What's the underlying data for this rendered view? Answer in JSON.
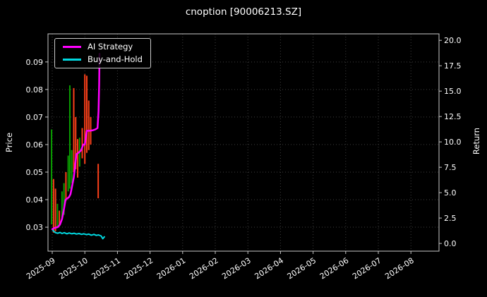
{
  "title": "cnoption [90006213.SZ]",
  "legend": [
    {
      "label": "AI Strategy",
      "color": "#ff00ff"
    },
    {
      "label": "Buy-and-Hold",
      "color": "#00d8e0"
    }
  ],
  "chart_data": {
    "type": "line",
    "title": "cnoption [90006213.SZ]",
    "xlabel": "",
    "left_ylabel": "Price",
    "right_ylabel": "Return",
    "grid": true,
    "legend_position": "upper left",
    "background": "#000000",
    "colors": {
      "grid": "#3f3f3f",
      "spine": "#c9c9c9",
      "text": "#ffffff",
      "up": "#0a9e01",
      "down": "#fb4019"
    },
    "x_tick_labels": [
      "2025-09",
      "2025-10",
      "2025-11",
      "2025-12",
      "2026-01",
      "2026-02",
      "2026-03",
      "2026-04",
      "2026-05",
      "2026-06",
      "2026-07",
      "2026-08"
    ],
    "left_yticks": [
      0.03,
      0.04,
      0.05,
      0.06,
      0.07,
      0.08,
      0.09
    ],
    "right_yticks": [
      0.0,
      2.5,
      5.0,
      7.5,
      10.0,
      12.5,
      15.0,
      17.5,
      20.0
    ],
    "left_ylim": [
      0.0213,
      0.1002
    ],
    "right_ylim": [
      -0.76,
      20.64
    ],
    "x_unit": "months after 2025-09 tick",
    "series": [
      {
        "name": "AI Strategy",
        "axis": "left",
        "color": "#ff00ff",
        "width": 2.5,
        "points": [
          [
            0,
            0.0293
          ],
          [
            0.08,
            0.0298
          ],
          [
            0.17,
            0.03
          ],
          [
            0.24,
            0.031
          ],
          [
            0.3,
            0.033
          ],
          [
            0.35,
            0.036
          ],
          [
            0.41,
            0.04
          ],
          [
            0.47,
            0.0405
          ],
          [
            0.52,
            0.041
          ],
          [
            0.56,
            0.042
          ],
          [
            0.61,
            0.045
          ],
          [
            0.66,
            0.048
          ],
          [
            0.7,
            0.052
          ],
          [
            0.74,
            0.0565
          ],
          [
            0.8,
            0.057
          ],
          [
            0.85,
            0.0575
          ],
          [
            0.89,
            0.058
          ],
          [
            0.95,
            0.06
          ],
          [
            1.0,
            0.06
          ],
          [
            1.06,
            0.065
          ],
          [
            1.15,
            0.065
          ],
          [
            1.25,
            0.0652
          ],
          [
            1.32,
            0.0655
          ],
          [
            1.39,
            0.066
          ],
          [
            1.42,
            0.072
          ],
          [
            1.44,
            0.082
          ],
          [
            1.45,
            0.093
          ]
        ]
      },
      {
        "name": "Buy-and-Hold",
        "axis": "left",
        "color": "#00d8e0",
        "width": 2,
        "points": [
          [
            0,
            0.0292
          ],
          [
            0.05,
            0.0285
          ],
          [
            0.1,
            0.028
          ],
          [
            0.17,
            0.0278
          ],
          [
            0.24,
            0.0281
          ],
          [
            0.3,
            0.0277
          ],
          [
            0.37,
            0.028
          ],
          [
            0.45,
            0.0276
          ],
          [
            0.52,
            0.0279
          ],
          [
            0.6,
            0.0276
          ],
          [
            0.67,
            0.0278
          ],
          [
            0.74,
            0.0275
          ],
          [
            0.82,
            0.0277
          ],
          [
            0.9,
            0.0274
          ],
          [
            0.97,
            0.0276
          ],
          [
            1.05,
            0.0273
          ],
          [
            1.12,
            0.0275
          ],
          [
            1.2,
            0.0271
          ],
          [
            1.28,
            0.0274
          ],
          [
            1.35,
            0.027
          ],
          [
            1.42,
            0.0272
          ],
          [
            1.5,
            0.0268
          ],
          [
            1.55,
            0.0258
          ],
          [
            1.6,
            0.0265
          ]
        ]
      }
    ],
    "candles": [
      {
        "x": -0.02,
        "low": 0.031,
        "high": 0.0655,
        "color": "#0a9e01"
      },
      {
        "x": 0.04,
        "low": 0.028,
        "high": 0.0475,
        "color": "#fb4019"
      },
      {
        "x": 0.1,
        "low": 0.0285,
        "high": 0.044,
        "color": "#fb4019"
      },
      {
        "x": 0.16,
        "low": 0.03,
        "high": 0.0385,
        "color": "#0a9e01"
      },
      {
        "x": 0.22,
        "low": 0.0305,
        "high": 0.036,
        "color": "#fb4019"
      },
      {
        "x": 0.3,
        "low": 0.033,
        "high": 0.043,
        "color": "#0a9e01"
      },
      {
        "x": 0.36,
        "low": 0.0345,
        "high": 0.046,
        "color": "#0a9e01"
      },
      {
        "x": 0.42,
        "low": 0.0395,
        "high": 0.05,
        "color": "#fb4019"
      },
      {
        "x": 0.49,
        "low": 0.043,
        "high": 0.056,
        "color": "#0a9e01"
      },
      {
        "x": 0.54,
        "low": 0.044,
        "high": 0.0815,
        "color": "#0a9e01"
      },
      {
        "x": 0.6,
        "low": 0.046,
        "high": 0.058,
        "color": "#0a9e01"
      },
      {
        "x": 0.66,
        "low": 0.05,
        "high": 0.0805,
        "color": "#fb4019"
      },
      {
        "x": 0.72,
        "low": 0.051,
        "high": 0.07,
        "color": "#fb4019"
      },
      {
        "x": 0.78,
        "low": 0.048,
        "high": 0.062,
        "color": "#fb4019"
      },
      {
        "x": 0.84,
        "low": 0.052,
        "high": 0.0625,
        "color": "#0a9e01"
      },
      {
        "x": 0.92,
        "low": 0.055,
        "high": 0.066,
        "color": "#fb4019"
      },
      {
        "x": 1.0,
        "low": 0.053,
        "high": 0.0855,
        "color": "#fb4019"
      },
      {
        "x": 1.06,
        "low": 0.057,
        "high": 0.085,
        "color": "#fb4019"
      },
      {
        "x": 1.12,
        "low": 0.058,
        "high": 0.076,
        "color": "#fb4019"
      },
      {
        "x": 1.18,
        "low": 0.06,
        "high": 0.07,
        "color": "#fb4019"
      },
      {
        "x": 1.41,
        "low": 0.0405,
        "high": 0.053,
        "color": "#fb4019"
      }
    ]
  }
}
